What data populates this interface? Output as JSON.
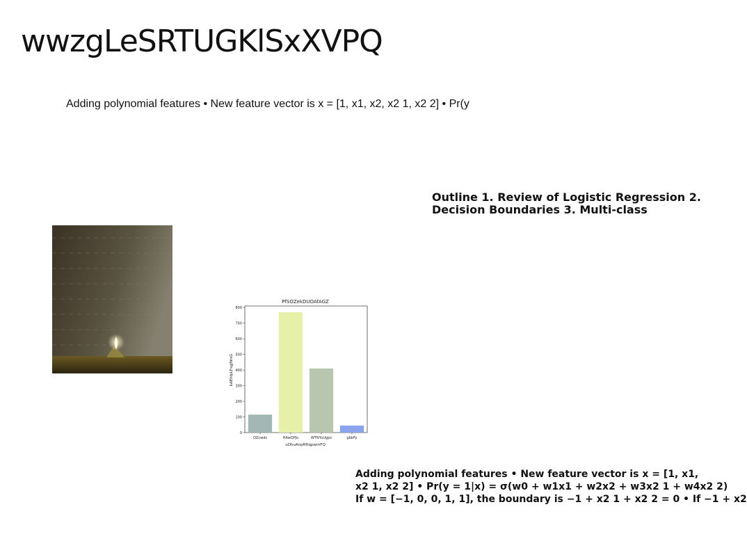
{
  "page": {
    "title": "wwzgLeSRTUGKlSxXVPQ",
    "subline": "Adding polynomial features • New feature vector is x = [1, x1, x2, x2 1, x2 2] • Pr(y",
    "outline": "Outline 1. Review of Logistic Regression 2. Decision Boundaries 3. Multi-class",
    "body_lines": [
      "Adding polynomial features • New feature vector is x = [1, x1,",
      "x2 1, x2 2] • Pr(y = 1|x) = σ(w0 + w1x1 + w2x2 + w3x2 1 + w4x2 2)",
      "If w = [−1, 0, 0, 1, 1], the boundary is −1 + x2 1 + x2 2 = 0 • If −1 + x2"
    ]
  },
  "chart_data": {
    "type": "bar",
    "title": "PfSOZekDUOAfAGZ",
    "xlabel": "uDhuAnpRftqpwmFQ",
    "ylabel": "kAEhIpLFsgjNrsG",
    "categories": [
      "OZcwds",
      "HAwQPJo",
      "WTNYuUgpz",
      "gbbFy"
    ],
    "values": [
      115,
      770,
      410,
      45
    ],
    "colors": [
      "#a3b8b5",
      "#e7f0a8",
      "#b8c6b0",
      "#8aa4ee"
    ],
    "ylim": [
      0,
      810
    ],
    "yticks": [
      0,
      100,
      200,
      300,
      400,
      500,
      600,
      700,
      800
    ],
    "grid": false
  }
}
